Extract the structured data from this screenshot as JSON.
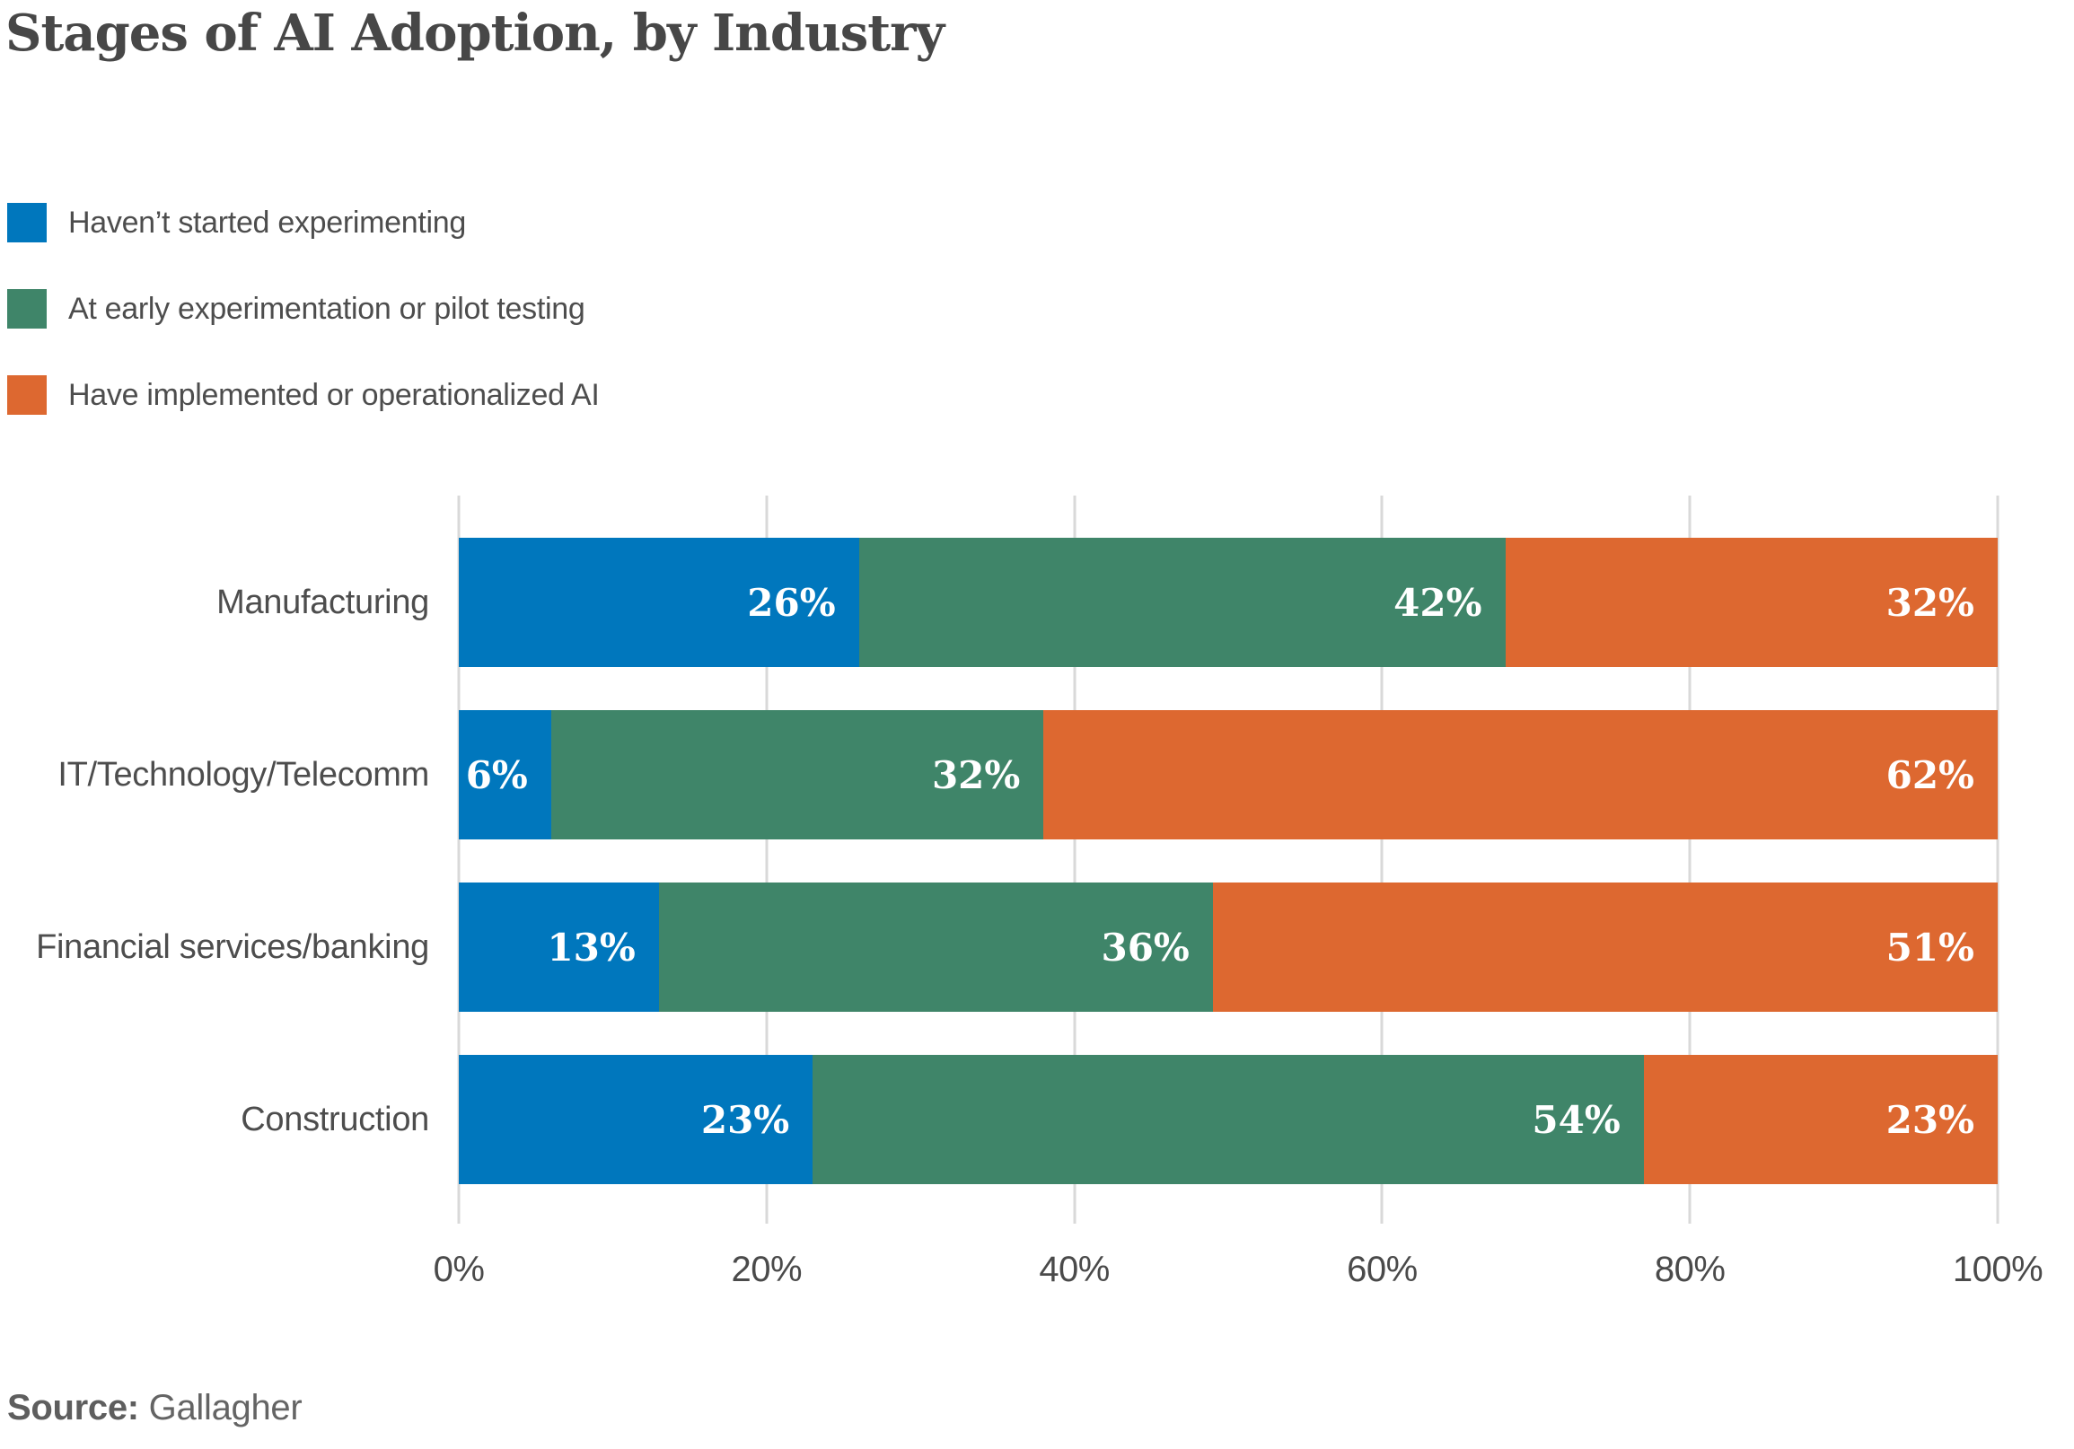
{
  "title": "Stages of AI Adoption, by Industry",
  "legend": {
    "position": "top-left",
    "items": [
      {
        "label": "Haven’t started experimenting",
        "color": "#0077BD"
      },
      {
        "label": "At early experimentation or pilot testing",
        "color": "#3F8569"
      },
      {
        "label": "Have implemented or operationalized AI",
        "color": "#DD6830"
      }
    ]
  },
  "chart_data": {
    "type": "bar",
    "orientation": "horizontal",
    "stacked": true,
    "title": "Stages of AI Adoption, by Industry",
    "categories": [
      "Manufacturing",
      "IT/Technology/Telecomm",
      "Financial services/banking",
      "Construction"
    ],
    "series": [
      {
        "name": "Haven’t started experimenting",
        "color": "#0077BD",
        "values": [
          26,
          6,
          13,
          23
        ]
      },
      {
        "name": "At early experimentation or pilot testing",
        "color": "#3F8569",
        "values": [
          42,
          32,
          36,
          54
        ]
      },
      {
        "name": "Have implemented or operationalized AI",
        "color": "#DD6830",
        "values": [
          32,
          62,
          51,
          23
        ]
      }
    ],
    "value_label_format": "{v}%",
    "value_label_color": "#ffffff",
    "xlim": [
      0,
      100
    ],
    "x_ticks": [
      "0%",
      "20%",
      "40%",
      "60%",
      "80%",
      "100%"
    ],
    "x_tick_values": [
      0,
      20,
      40,
      60,
      80,
      100
    ],
    "grid": "vertical",
    "gridline_color": "#d9d9d9"
  },
  "source": {
    "label": "Source:",
    "value": "Gallagher"
  }
}
